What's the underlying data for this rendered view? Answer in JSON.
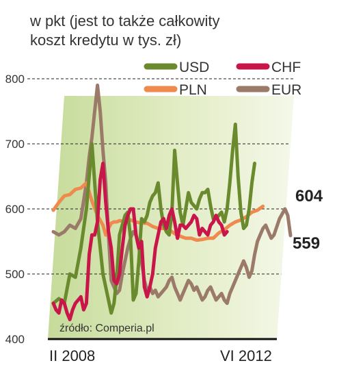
{
  "chart_data": {
    "type": "line",
    "title": "w pkt (jest to także całkowity koszt kredytu w tys. zł)",
    "title_lines": [
      "w pkt (jest to także całkowity",
      "koszt kredytu w tys. zł)"
    ],
    "x_start_label": "II 2008",
    "x_end_label": "VI 2012",
    "source": "źródło: Comperia.pl",
    "ylim": [
      400,
      800
    ],
    "y_ticks": [
      400,
      500,
      600,
      700,
      800
    ],
    "legend_placement": "top-right",
    "end_labels": [
      {
        "text": "604",
        "value": 604
      },
      {
        "text": "559",
        "value": 559
      }
    ],
    "series": [
      {
        "name": "USD",
        "color": "#6a8a2e",
        "points": [
          [
            0,
            455
          ],
          [
            2,
            462
          ],
          [
            4,
            455
          ],
          [
            6,
            500
          ],
          [
            8,
            495
          ],
          [
            10,
            540
          ],
          [
            12,
            600
          ],
          [
            14,
            700
          ],
          [
            16,
            580
          ],
          [
            18,
            500
          ],
          [
            20,
            460
          ],
          [
            21,
            440
          ],
          [
            22,
            455
          ],
          [
            23,
            495
          ],
          [
            24,
            560
          ],
          [
            26,
            590
          ],
          [
            27,
            595
          ],
          [
            28,
            555
          ],
          [
            29,
            460
          ],
          [
            30,
            470
          ],
          [
            31,
            520
          ],
          [
            32,
            585
          ],
          [
            33,
            580
          ],
          [
            34,
            590
          ],
          [
            35,
            610
          ],
          [
            36,
            620
          ],
          [
            37,
            625
          ],
          [
            38,
            640
          ],
          [
            39,
            600
          ],
          [
            40,
            575
          ],
          [
            41,
            565
          ],
          [
            42,
            560
          ],
          [
            43,
            595
          ],
          [
            44,
            690
          ],
          [
            45,
            640
          ],
          [
            46,
            595
          ],
          [
            47,
            575
          ],
          [
            48,
            600
          ],
          [
            49,
            625
          ],
          [
            50,
            610
          ],
          [
            51,
            605
          ],
          [
            52,
            600
          ],
          [
            53,
            615
          ],
          [
            54,
            625
          ],
          [
            55,
            625
          ],
          [
            56,
            630
          ],
          [
            57,
            605
          ],
          [
            58,
            585
          ],
          [
            59,
            585
          ],
          [
            60,
            590
          ],
          [
            61,
            595
          ],
          [
            62,
            580
          ],
          [
            63,
            600
          ],
          [
            64,
            640
          ],
          [
            65,
            690
          ],
          [
            66,
            730
          ],
          [
            67,
            650
          ],
          [
            68,
            595
          ],
          [
            69,
            570
          ],
          [
            70,
            575
          ],
          [
            71,
            600
          ],
          [
            72,
            640
          ],
          [
            73,
            670
          ]
        ]
      },
      {
        "name": "CHF",
        "color": "#c8154a",
        "points": [
          [
            0,
            455
          ],
          [
            1,
            445
          ],
          [
            2,
            440
          ],
          [
            3,
            460
          ],
          [
            4,
            455
          ],
          [
            5,
            440
          ],
          [
            6,
            430
          ],
          [
            7,
            445
          ],
          [
            8,
            455
          ],
          [
            10,
            465
          ],
          [
            11,
            445
          ],
          [
            12,
            455
          ],
          [
            13,
            530
          ],
          [
            14,
            560
          ],
          [
            15,
            560
          ],
          [
            16,
            580
          ],
          [
            17,
            645
          ],
          [
            18,
            670
          ],
          [
            19,
            610
          ],
          [
            20,
            565
          ],
          [
            21,
            540
          ],
          [
            22,
            490
          ],
          [
            23,
            485
          ],
          [
            24,
            500
          ],
          [
            25,
            540
          ],
          [
            26,
            575
          ],
          [
            27,
            590
          ],
          [
            28,
            600
          ],
          [
            29,
            600
          ],
          [
            30,
            560
          ],
          [
            31,
            540
          ],
          [
            32,
            550
          ],
          [
            33,
            480
          ],
          [
            34,
            465
          ],
          [
            35,
            480
          ],
          [
            36,
            500
          ],
          [
            37,
            540
          ],
          [
            38,
            560
          ],
          [
            39,
            580
          ],
          [
            40,
            585
          ],
          [
            41,
            570
          ],
          [
            42,
            590
          ],
          [
            43,
            600
          ],
          [
            44,
            580
          ],
          [
            45,
            555
          ],
          [
            46,
            575
          ],
          [
            47,
            575
          ],
          [
            48,
            570
          ],
          [
            49,
            575
          ],
          [
            50,
            580
          ],
          [
            51,
            590
          ],
          [
            52,
            585
          ],
          [
            53,
            560
          ],
          [
            54,
            570
          ],
          [
            55,
            565
          ],
          [
            56,
            560
          ],
          [
            57,
            575
          ],
          [
            58,
            580
          ],
          [
            59,
            590
          ],
          [
            60,
            580
          ],
          [
            61,
            575
          ],
          [
            62,
            560
          ],
          [
            63,
            565
          ]
        ]
      },
      {
        "name": "PLN",
        "color": "#ee8a4e",
        "points": [
          [
            0,
            598
          ],
          [
            2,
            610
          ],
          [
            4,
            620
          ],
          [
            6,
            622
          ],
          [
            8,
            630
          ],
          [
            10,
            632
          ],
          [
            12,
            640
          ],
          [
            14,
            612
          ],
          [
            16,
            590
          ],
          [
            18,
            575
          ],
          [
            19,
            560
          ],
          [
            20,
            570
          ],
          [
            21,
            578
          ],
          [
            22,
            580
          ],
          [
            23,
            580
          ],
          [
            24,
            582
          ],
          [
            26,
            580
          ],
          [
            28,
            583
          ],
          [
            30,
            580
          ],
          [
            32,
            578
          ],
          [
            34,
            578
          ],
          [
            36,
            573
          ],
          [
            38,
            570
          ],
          [
            40,
            570
          ],
          [
            42,
            568
          ],
          [
            44,
            562
          ],
          [
            46,
            558
          ],
          [
            48,
            555
          ],
          [
            50,
            555
          ],
          [
            52,
            552
          ],
          [
            54,
            553
          ],
          [
            56,
            555
          ],
          [
            58,
            555
          ],
          [
            60,
            563
          ],
          [
            62,
            568
          ],
          [
            64,
            575
          ],
          [
            66,
            580
          ],
          [
            68,
            583
          ],
          [
            70,
            588
          ],
          [
            72,
            595
          ],
          [
            74,
            598
          ],
          [
            76,
            604
          ]
        ]
      },
      {
        "name": "EUR",
        "color": "#9b7a6a",
        "points": [
          [
            0,
            565
          ],
          [
            2,
            560
          ],
          [
            4,
            565
          ],
          [
            6,
            575
          ],
          [
            8,
            570
          ],
          [
            10,
            585
          ],
          [
            12,
            640
          ],
          [
            13,
            680
          ],
          [
            14,
            710
          ],
          [
            15,
            750
          ],
          [
            16,
            790
          ],
          [
            17,
            750
          ],
          [
            18,
            690
          ],
          [
            19,
            640
          ],
          [
            20,
            560
          ],
          [
            21,
            490
          ],
          [
            22,
            480
          ],
          [
            23,
            470
          ],
          [
            24,
            475
          ],
          [
            25,
            500
          ],
          [
            26,
            520
          ],
          [
            27,
            540
          ],
          [
            28,
            555
          ],
          [
            29,
            565
          ],
          [
            30,
            560
          ],
          [
            31,
            540
          ],
          [
            32,
            520
          ],
          [
            33,
            490
          ],
          [
            34,
            475
          ],
          [
            35,
            480
          ],
          [
            36,
            470
          ],
          [
            37,
            475
          ],
          [
            38,
            465
          ],
          [
            39,
            470
          ],
          [
            40,
            475
          ],
          [
            41,
            480
          ],
          [
            42,
            490
          ],
          [
            43,
            495
          ],
          [
            44,
            480
          ],
          [
            45,
            470
          ],
          [
            46,
            460
          ],
          [
            47,
            470
          ],
          [
            48,
            480
          ],
          [
            49,
            490
          ],
          [
            50,
            485
          ],
          [
            51,
            475
          ],
          [
            52,
            480
          ],
          [
            53,
            470
          ],
          [
            54,
            460
          ],
          [
            55,
            465
          ],
          [
            56,
            475
          ],
          [
            57,
            480
          ],
          [
            58,
            470
          ],
          [
            59,
            460
          ],
          [
            60,
            465
          ],
          [
            61,
            470
          ],
          [
            62,
            460
          ],
          [
            63,
            455
          ],
          [
            64,
            470
          ],
          [
            65,
            480
          ],
          [
            66,
            490
          ],
          [
            67,
            500
          ],
          [
            68,
            510
          ],
          [
            69,
            520
          ],
          [
            70,
            510
          ],
          [
            71,
            495
          ],
          [
            72,
            505
          ],
          [
            73,
            530
          ],
          [
            74,
            550
          ],
          [
            75,
            560
          ],
          [
            76,
            570
          ],
          [
            77,
            575
          ],
          [
            78,
            565
          ],
          [
            79,
            555
          ],
          [
            80,
            560
          ],
          [
            82,
            585
          ],
          [
            84,
            600
          ],
          [
            85,
            590
          ],
          [
            86,
            559
          ]
        ]
      }
    ]
  }
}
